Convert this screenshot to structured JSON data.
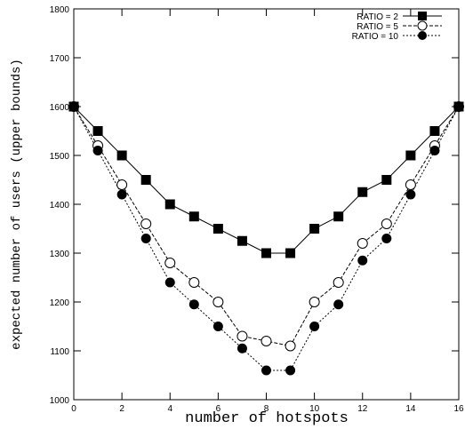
{
  "chart_data": {
    "type": "line",
    "title": "",
    "xlabel": "number of hotspots",
    "ylabel": "expected number of users (upper bounds)",
    "xlim": [
      0,
      16
    ],
    "ylim": [
      1000,
      1800
    ],
    "x_ticks": [
      "0",
      "2",
      "4",
      "6",
      "8",
      "10",
      "12",
      "14",
      "16"
    ],
    "y_ticks": [
      "1000",
      "1100",
      "1200",
      "1300",
      "1400",
      "1500",
      "1600",
      "1700",
      "1800"
    ],
    "grid": false,
    "legend_position": "top-right",
    "x": [
      0,
      1,
      2,
      3,
      4,
      5,
      6,
      7,
      8,
      9,
      10,
      11,
      12,
      13,
      14,
      15,
      16
    ],
    "series": [
      {
        "name": "RATIO = 2",
        "marker": "filled-square",
        "line": "solid",
        "values": [
          1600,
          1550,
          1500,
          1450,
          1400,
          1375,
          1350,
          1325,
          1300,
          1300,
          1350,
          1375,
          1425,
          1450,
          1500,
          1550,
          1600
        ]
      },
      {
        "name": "RATIO = 5",
        "marker": "open-circle",
        "line": "dashed",
        "values": [
          1600,
          1520,
          1440,
          1360,
          1280,
          1240,
          1200,
          1130,
          1120,
          1110,
          1200,
          1240,
          1320,
          1360,
          1440,
          1520,
          1600
        ]
      },
      {
        "name": "RATIO = 10",
        "marker": "filled-circle",
        "line": "dotted",
        "values": [
          1600,
          1510,
          1420,
          1330,
          1240,
          1195,
          1150,
          1105,
          1060,
          1060,
          1150,
          1195,
          1285,
          1330,
          1420,
          1510,
          1600
        ]
      }
    ]
  }
}
